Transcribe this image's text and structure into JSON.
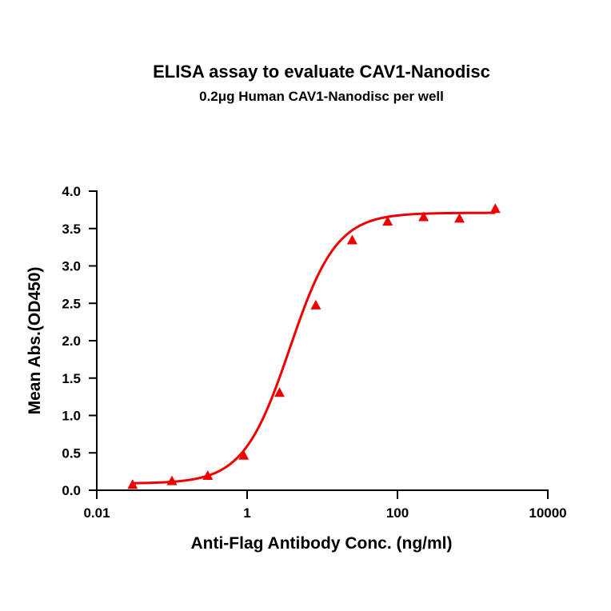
{
  "chart_data": {
    "type": "scatter",
    "title": "ELISA assay to evaluate CAV1-Nanodisc",
    "subtitle": "0.2μg Human CAV1-Nanodisc per well",
    "xlabel": "Anti-Flag Antibody Conc. (ng/ml)",
    "ylabel": "Mean Abs.(OD450)",
    "x_scale": "log",
    "xlim": [
      0.01,
      10000
    ],
    "ylim": [
      0,
      4.0
    ],
    "x_ticks": [
      {
        "value": 0.01,
        "label": "0.01"
      },
      {
        "value": 1,
        "label": "1"
      },
      {
        "value": 100,
        "label": "100"
      },
      {
        "value": 10000,
        "label": "10000"
      }
    ],
    "y_ticks": [
      {
        "value": 0.0,
        "label": "0.0"
      },
      {
        "value": 0.5,
        "label": "0.5"
      },
      {
        "value": 1.0,
        "label": "1.0"
      },
      {
        "value": 1.5,
        "label": "1.5"
      },
      {
        "value": 2.0,
        "label": "2.0"
      },
      {
        "value": 2.5,
        "label": "2.5"
      },
      {
        "value": 3.0,
        "label": "3.0"
      },
      {
        "value": 3.5,
        "label": "3.5"
      },
      {
        "value": 4.0,
        "label": "4.0"
      }
    ],
    "grid": false,
    "legend": "none",
    "series": [
      {
        "marker": "triangle",
        "color": "#ee0000",
        "x": [
          0.03,
          0.1,
          0.3,
          0.9,
          2.7,
          8.2,
          25,
          74,
          222,
          667,
          2000
        ],
        "y": [
          0.07,
          0.12,
          0.19,
          0.46,
          1.3,
          2.47,
          3.34,
          3.59,
          3.65,
          3.63,
          3.76
        ]
      }
    ],
    "fit_curve": {
      "model": "4PL",
      "bottom": 0.09,
      "top": 3.71,
      "ec50": 3.7,
      "hill": 1.4,
      "color": "#ee0000"
    }
  }
}
